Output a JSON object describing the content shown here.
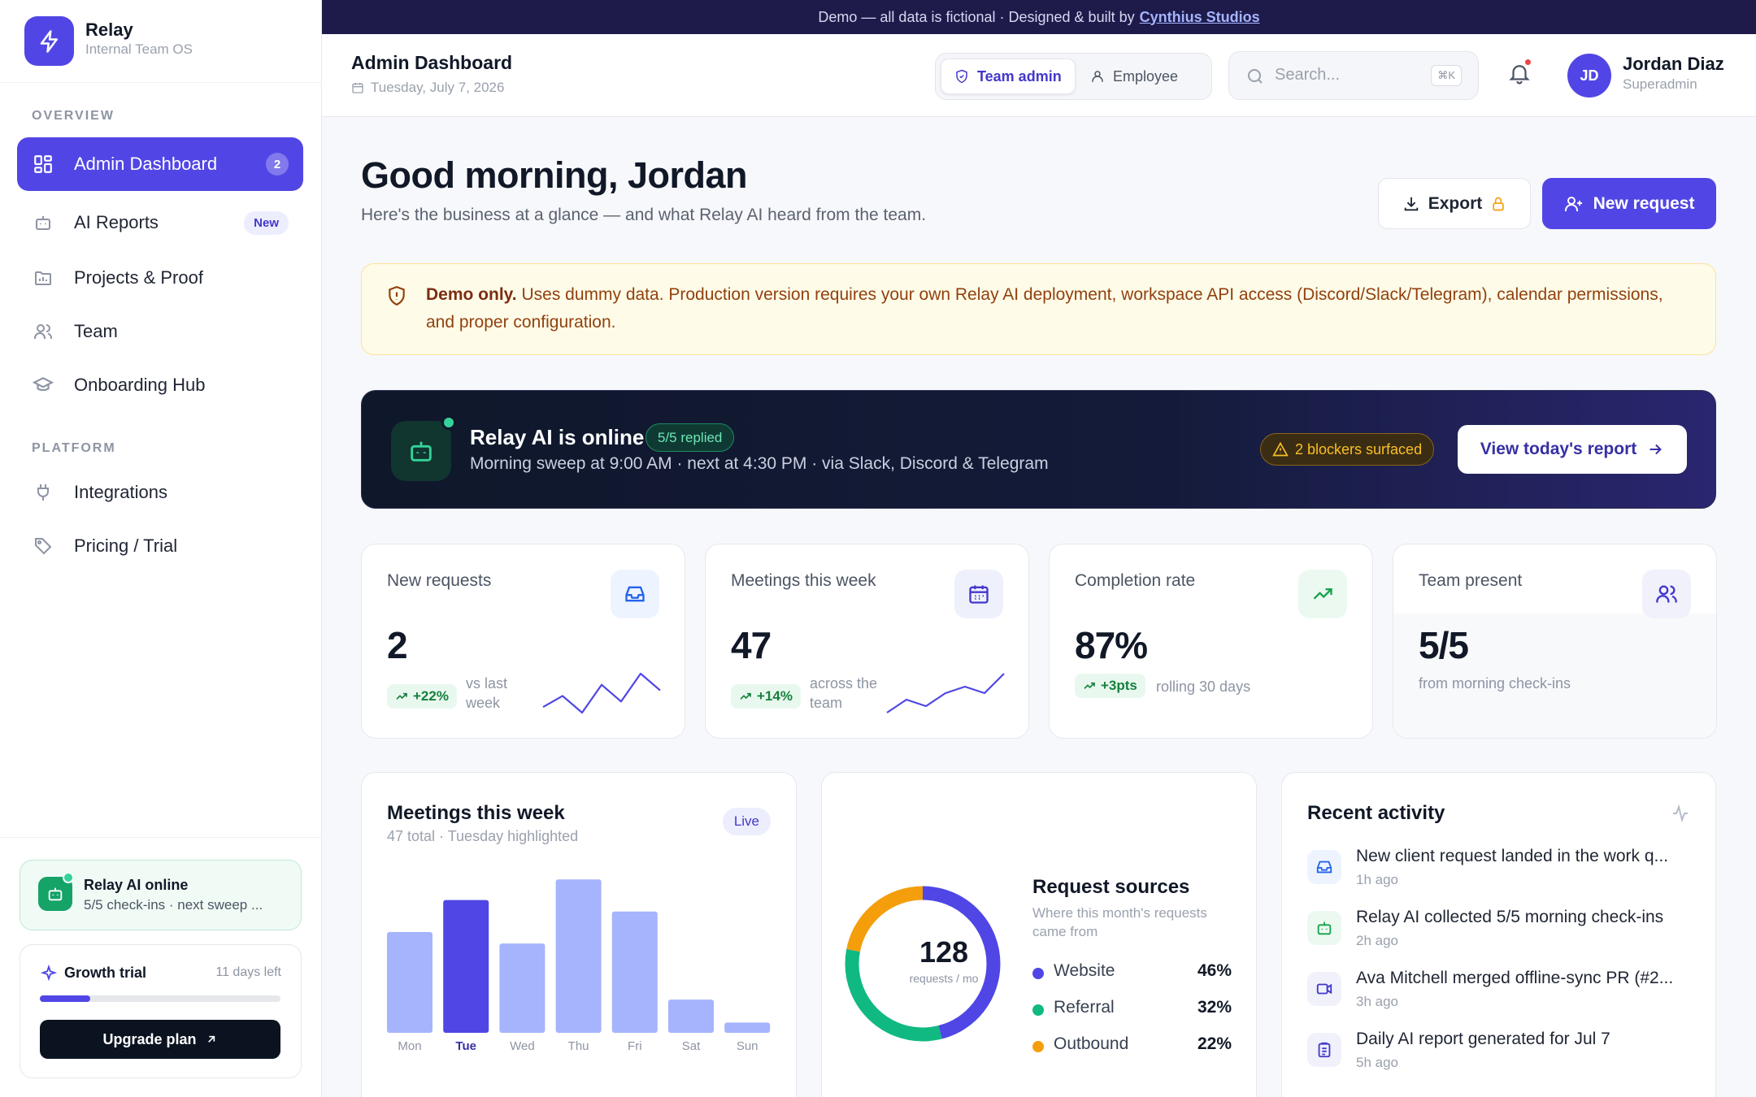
{
  "brand": {
    "name": "Relay",
    "tagline": "Internal Team OS"
  },
  "demo_bar": {
    "text": "Demo — all data is fictional · Designed & built by",
    "link": "Cynthius Studios"
  },
  "sidebar": {
    "sections": [
      "OVERVIEW",
      "PLATFORM"
    ],
    "items": [
      {
        "label": "Admin Dashboard",
        "badge": "2",
        "icon": "grid-icon"
      },
      {
        "label": "AI Reports",
        "badge": "New",
        "icon": "bot-icon"
      },
      {
        "label": "Projects & Proof",
        "icon": "folder-icon"
      },
      {
        "label": "Team",
        "icon": "users-icon"
      },
      {
        "label": "Onboarding Hub",
        "icon": "graduation-cap-icon"
      },
      {
        "label": "Integrations",
        "icon": "plug-icon"
      },
      {
        "label": "Pricing / Trial",
        "icon": "tag-icon"
      }
    ],
    "ai_status": {
      "title": "Relay AI online",
      "subtitle": "5/5 check-ins · next sweep ..."
    },
    "trial": {
      "title": "Growth trial",
      "days_left": "11 days left",
      "progress": 0.21,
      "button": "Upgrade plan"
    }
  },
  "header": {
    "title": "Admin Dashboard",
    "date": "Tuesday, July 7, 2026",
    "roles": {
      "active": "Team admin",
      "other": "Employee"
    },
    "search": {
      "placeholder": "Search...",
      "shortcut": "⌘K"
    },
    "user": {
      "initials": "JD",
      "name": "Jordan Diaz",
      "role": "Superadmin"
    }
  },
  "main": {
    "greeting": "Good morning, Jordan",
    "subtitle": "Here's the business at a glance — and what Relay AI heard from the team.",
    "export_label": "Export",
    "new_request_label": "New request",
    "notice": {
      "bold": "Demo only.",
      "text": "Uses dummy data. Production version requires your own Relay AI deployment, workspace API access (Discord/Slack/Telegram), calendar permissions, and proper configuration."
    },
    "ai_banner": {
      "title": "Relay AI is online",
      "pill": "5/5 replied",
      "subtitle": "Morning sweep at 9:00 AM · next at 4:30 PM · via Slack, Discord & Telegram",
      "warning": "2 blockers surfaced",
      "button": "View today's report"
    },
    "stats": [
      {
        "label": "New requests",
        "value": "2",
        "change": "+22%",
        "note": "vs last week",
        "icon": "inbox-icon",
        "color": "#2563eb"
      },
      {
        "label": "Meetings this week",
        "value": "47",
        "change": "+14%",
        "note": "across the team",
        "icon": "calendar-icon",
        "color": "#4338ca"
      },
      {
        "label": "Completion rate",
        "value": "87%",
        "change": "+3pts",
        "note": "rolling 30 days",
        "icon": "trend-up-icon",
        "color": "#16a34a"
      },
      {
        "label": "Team present",
        "value": "5/5",
        "note": "from morning check-ins",
        "icon": "users-icon",
        "color": "#4338ca"
      }
    ],
    "meetings": {
      "title": "Meetings this week",
      "subtitle": "47 total · Tuesday highlighted",
      "live": "Live"
    },
    "sources": {
      "title": "Request sources",
      "subtitle": "Where this month's requests came from",
      "total": "128",
      "total_caption": "requests / mo",
      "rows": [
        {
          "name": "Website",
          "pct": "46%",
          "color": "#4f46e5"
        },
        {
          "name": "Referral",
          "pct": "32%",
          "color": "#10b981"
        },
        {
          "name": "Outbound",
          "pct": "22%",
          "color": "#f59e0b"
        }
      ]
    },
    "activity": {
      "title": "Recent activity",
      "items": [
        {
          "text": "New client request landed in the work q...",
          "time": "1h ago",
          "icon": "inbox-icon"
        },
        {
          "text": "Relay AI collected 5/5 morning check-ins",
          "time": "2h ago",
          "icon": "bot-icon"
        },
        {
          "text": "Ava Mitchell merged offline-sync PR (#2...",
          "time": "3h ago",
          "icon": "video-icon"
        },
        {
          "text": "Daily AI report generated for Jul 7",
          "time": "5h ago",
          "icon": "clipboard-icon"
        }
      ]
    }
  },
  "chart_data": [
    {
      "type": "line",
      "title": "New requests",
      "x": [
        1,
        2,
        3,
        4,
        5,
        6,
        7
      ],
      "values": [
        3,
        5,
        2,
        7,
        4,
        9,
        6
      ]
    },
    {
      "type": "line",
      "title": "Meetings this week",
      "x": [
        1,
        2,
        3,
        4,
        5,
        6,
        7
      ],
      "values": [
        3,
        5,
        4,
        6,
        7,
        6,
        9
      ]
    },
    {
      "type": "bar",
      "title": "Meetings this week",
      "categories": [
        "Mon",
        "Tue",
        "Wed",
        "Thu",
        "Fri",
        "Sat",
        "Sun"
      ],
      "values": [
        8.8,
        11.6,
        7.8,
        13.4,
        10.6,
        2.9,
        0.9
      ],
      "highlight": "Tue",
      "colors": {
        "normal": "#a5b4fc",
        "highlight": "#4f46e5"
      }
    },
    {
      "type": "pie",
      "title": "Request sources",
      "categories": [
        "Website",
        "Referral",
        "Outbound"
      ],
      "values": [
        46,
        32,
        22
      ],
      "colors": [
        "#4f46e5",
        "#10b981",
        "#f59e0b"
      ]
    }
  ]
}
